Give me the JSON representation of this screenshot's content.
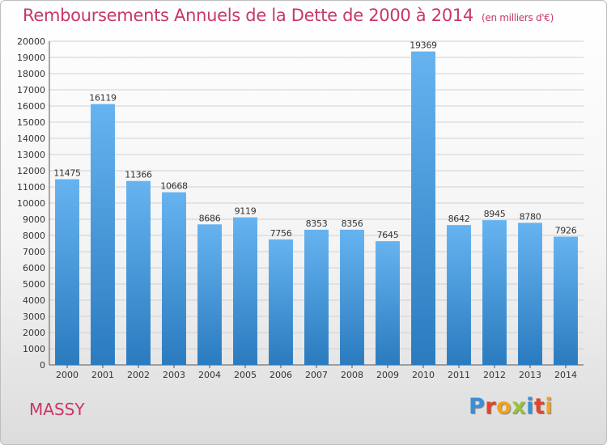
{
  "header": {
    "title": "Remboursements Annuels de la Dette de 2000 à 2014",
    "subtitle": "(en milliers d'€)"
  },
  "footer": {
    "town": "MASSY",
    "logo_text": "Proxiti",
    "logo_colors": [
      "#3a8fd6",
      "#e2452c",
      "#f2a21b",
      "#9ac23c",
      "#3a8fd6",
      "#e2452c",
      "#f2a21b"
    ]
  },
  "chart_data": {
    "type": "bar",
    "title": "Remboursements Annuels de la Dette de 2000 à 2014",
    "categories": [
      "2000",
      "2001",
      "2002",
      "2003",
      "2004",
      "2005",
      "2006",
      "2007",
      "2008",
      "2009",
      "2010",
      "2011",
      "2012",
      "2013",
      "2014"
    ],
    "values": [
      11475,
      16119,
      11366,
      10668,
      8686,
      9119,
      7756,
      8353,
      8356,
      7645,
      19369,
      8642,
      8945,
      8780,
      7926
    ],
    "ylim": [
      0,
      20000
    ],
    "ytick_step": 1000,
    "grid": true,
    "legend": "none",
    "xlabel": "",
    "ylabel": "",
    "bar_color_top": "#66b3f0",
    "bar_color_bottom": "#2a7bbf"
  }
}
